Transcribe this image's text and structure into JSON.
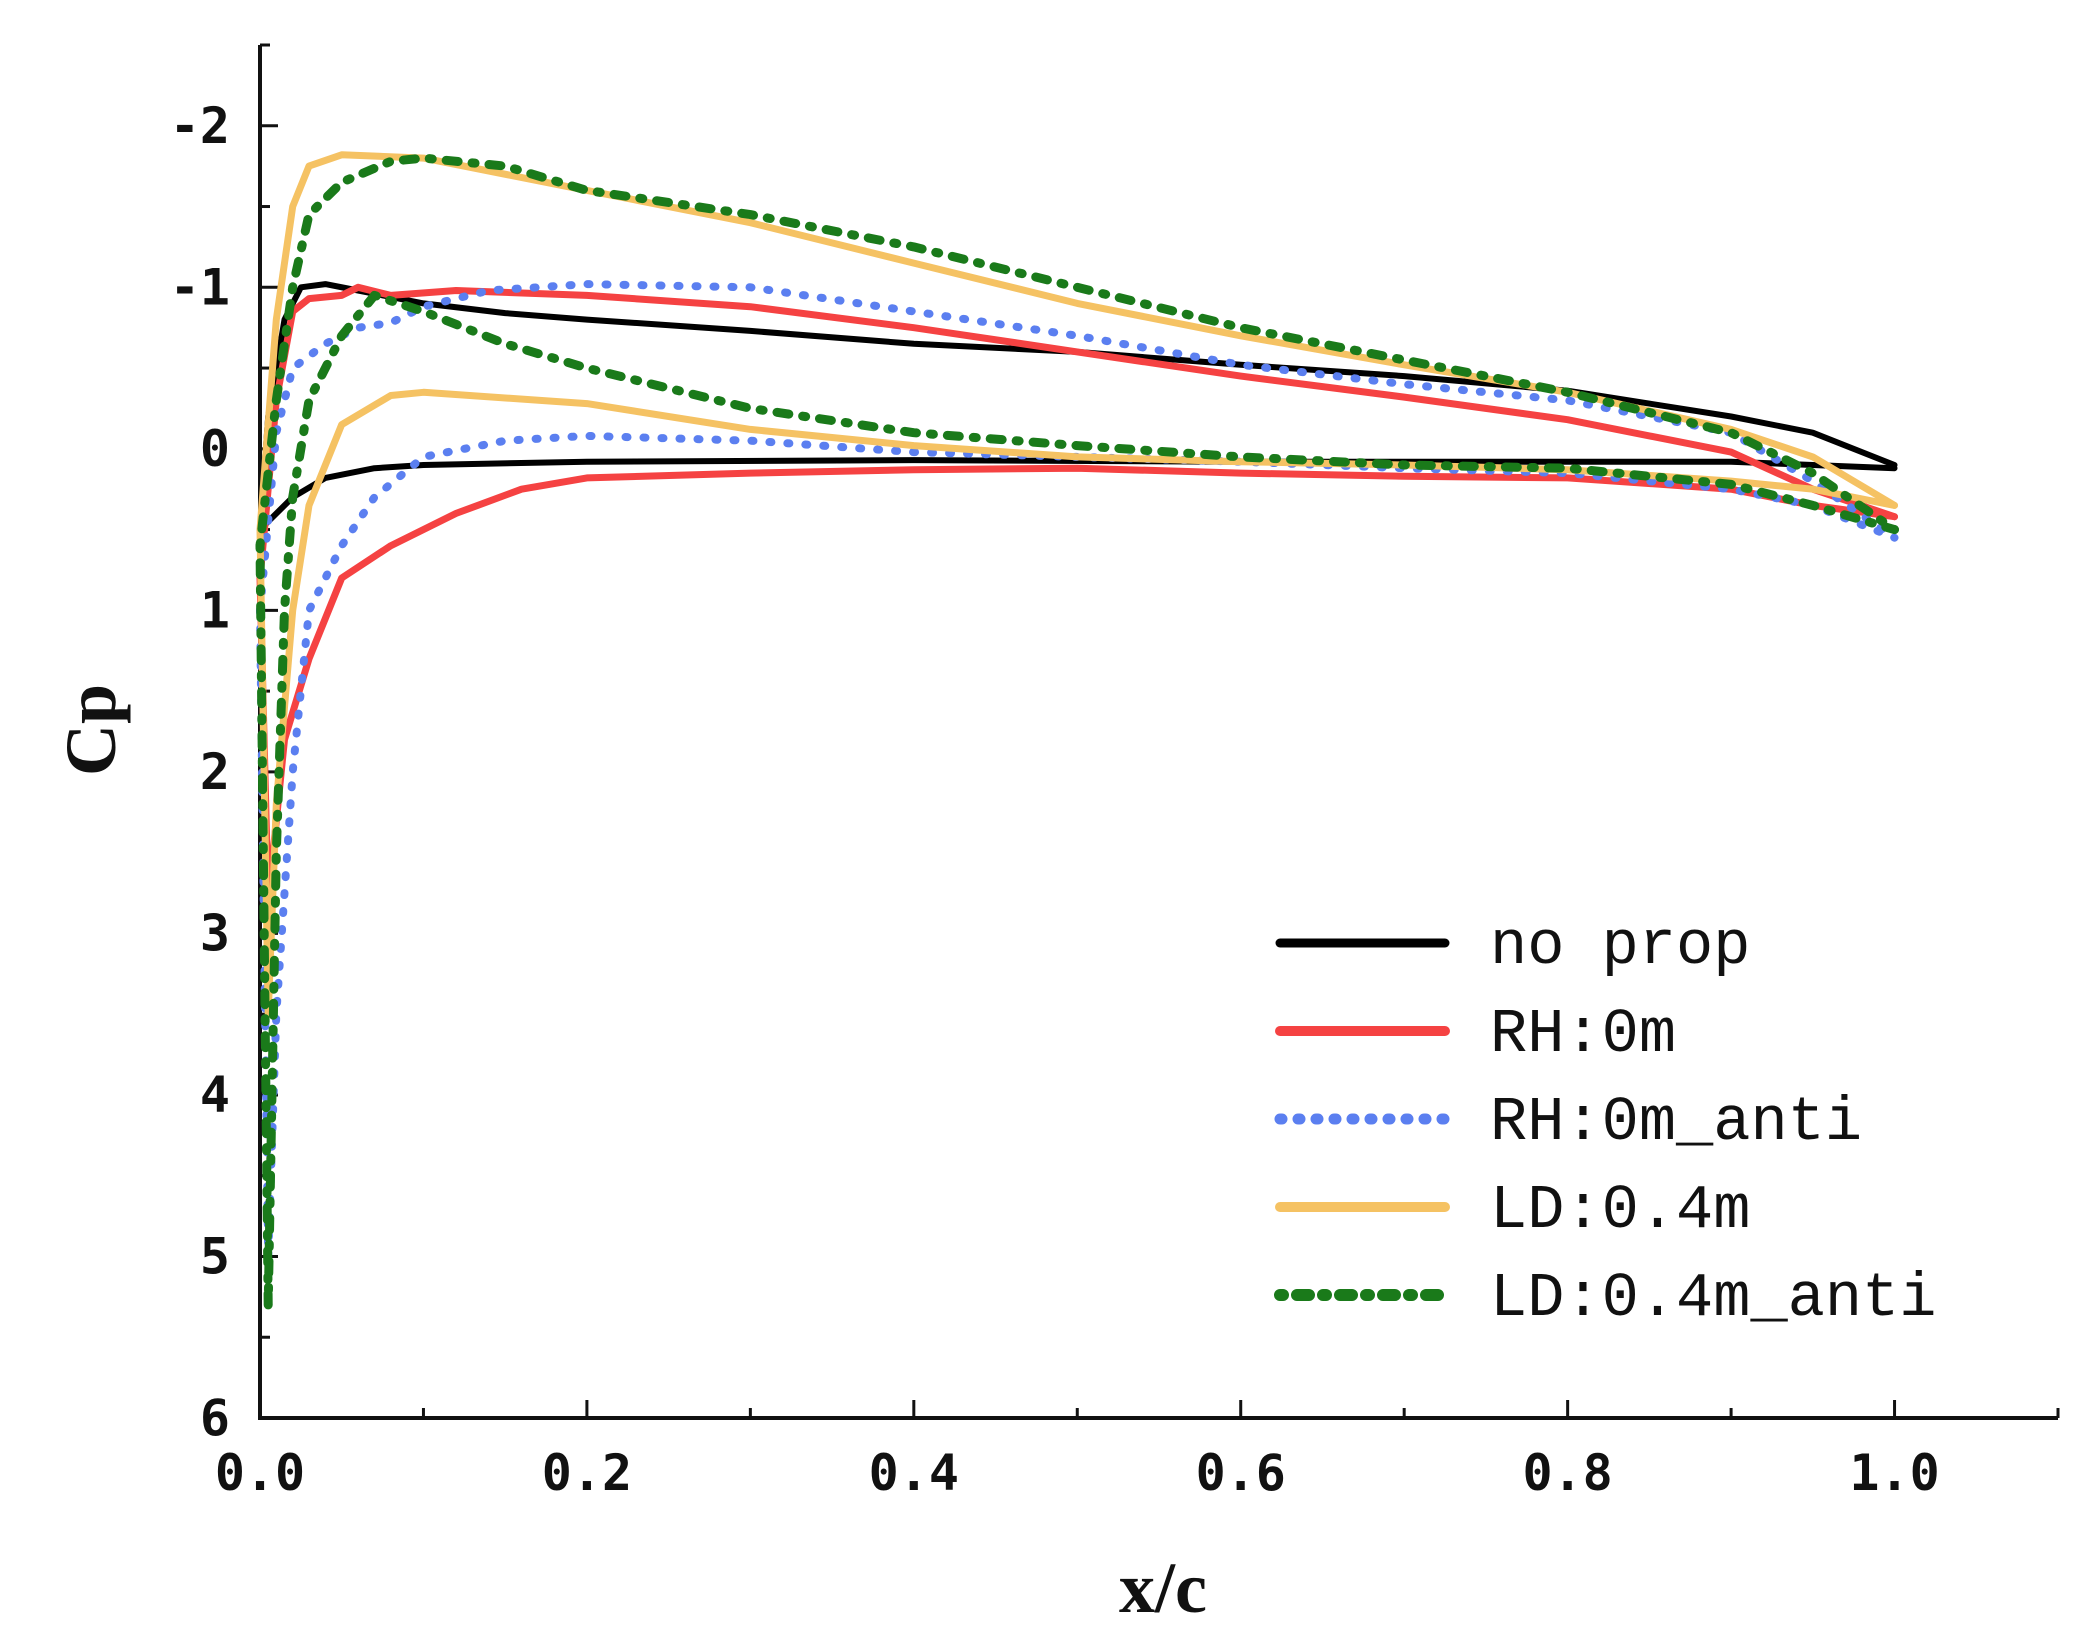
{
  "chart_data": {
    "type": "line",
    "title": "",
    "xlabel": "x/c",
    "ylabel": "Cp",
    "xlim": [
      0.0,
      1.1
    ],
    "ylim": [
      6,
      -2.5
    ],
    "y_inverted": true,
    "x_ticks": [
      0.0,
      0.2,
      0.4,
      0.6,
      0.8,
      1.0
    ],
    "x_tick_labels": [
      "0.0",
      "0.2",
      "0.4",
      "0.6",
      "0.8",
      "1.0"
    ],
    "y_ticks": [
      -2,
      -1,
      0,
      1,
      2,
      3,
      4,
      5,
      6
    ],
    "y_tick_labels": [
      "-2",
      "-1",
      "0",
      "1",
      "2",
      "3",
      "4",
      "5",
      "6"
    ],
    "legend_position": "bottom-right",
    "series": [
      {
        "name": "no prop",
        "color": "#000000",
        "style": "solid",
        "upper": [
          [
            0.0,
            0.5
          ],
          [
            0.005,
            -0.2
          ],
          [
            0.015,
            -0.8
          ],
          [
            0.025,
            -1.0
          ],
          [
            0.04,
            -1.02
          ],
          [
            0.06,
            -0.98
          ],
          [
            0.1,
            -0.9
          ],
          [
            0.15,
            -0.84
          ],
          [
            0.2,
            -0.8
          ],
          [
            0.3,
            -0.73
          ],
          [
            0.4,
            -0.65
          ],
          [
            0.5,
            -0.6
          ],
          [
            0.6,
            -0.52
          ],
          [
            0.7,
            -0.45
          ],
          [
            0.8,
            -0.36
          ],
          [
            0.9,
            -0.2
          ],
          [
            0.95,
            -0.1
          ],
          [
            1.0,
            0.1
          ]
        ],
        "lower": [
          [
            0.0,
            0.5
          ],
          [
            0.02,
            0.3
          ],
          [
            0.04,
            0.18
          ],
          [
            0.07,
            0.12
          ],
          [
            0.1,
            0.1
          ],
          [
            0.2,
            0.08
          ],
          [
            0.4,
            0.07
          ],
          [
            0.6,
            0.08
          ],
          [
            0.8,
            0.08
          ],
          [
            0.9,
            0.08
          ],
          [
            0.95,
            0.1
          ],
          [
            1.0,
            0.12
          ]
        ]
      },
      {
        "name": "RH:0m",
        "color": "#f54242",
        "style": "solid",
        "upper": [
          [
            0.0,
            0.8
          ],
          [
            0.01,
            -0.3
          ],
          [
            0.02,
            -0.85
          ],
          [
            0.03,
            -0.93
          ],
          [
            0.05,
            -0.95
          ],
          [
            0.06,
            -1.0
          ],
          [
            0.08,
            -0.95
          ],
          [
            0.12,
            -0.98
          ],
          [
            0.2,
            -0.95
          ],
          [
            0.3,
            -0.88
          ],
          [
            0.4,
            -0.75
          ],
          [
            0.5,
            -0.6
          ],
          [
            0.6,
            -0.45
          ],
          [
            0.7,
            -0.32
          ],
          [
            0.8,
            -0.18
          ],
          [
            0.9,
            0.02
          ],
          [
            0.95,
            0.25
          ],
          [
            1.0,
            0.42
          ]
        ],
        "lower": [
          [
            0.0,
            0.8
          ],
          [
            0.005,
            2.8
          ],
          [
            0.015,
            1.8
          ],
          [
            0.03,
            1.3
          ],
          [
            0.05,
            0.8
          ],
          [
            0.08,
            0.6
          ],
          [
            0.12,
            0.4
          ],
          [
            0.16,
            0.25
          ],
          [
            0.2,
            0.18
          ],
          [
            0.3,
            0.15
          ],
          [
            0.4,
            0.13
          ],
          [
            0.5,
            0.12
          ],
          [
            0.6,
            0.15
          ],
          [
            0.7,
            0.17
          ],
          [
            0.8,
            0.18
          ],
          [
            0.9,
            0.25
          ],
          [
            0.95,
            0.35
          ],
          [
            1.0,
            0.42
          ]
        ]
      },
      {
        "name": "RH:0m_anti",
        "color": "#5b7ff0",
        "style": "dotted",
        "upper": [
          [
            0.0,
            1.0
          ],
          [
            0.01,
            -0.1
          ],
          [
            0.02,
            -0.5
          ],
          [
            0.04,
            -0.65
          ],
          [
            0.06,
            -0.75
          ],
          [
            0.08,
            -0.78
          ],
          [
            0.1,
            -0.88
          ],
          [
            0.14,
            -0.98
          ],
          [
            0.2,
            -1.02
          ],
          [
            0.3,
            -1.0
          ],
          [
            0.4,
            -0.85
          ],
          [
            0.5,
            -0.7
          ],
          [
            0.6,
            -0.52
          ],
          [
            0.7,
            -0.4
          ],
          [
            0.8,
            -0.3
          ],
          [
            0.9,
            -0.1
          ],
          [
            0.95,
            0.2
          ],
          [
            1.0,
            0.55
          ]
        ],
        "lower": [
          [
            0.0,
            1.0
          ],
          [
            0.005,
            5.0
          ],
          [
            0.01,
            3.5
          ],
          [
            0.02,
            2.0
          ],
          [
            0.03,
            1.0
          ],
          [
            0.05,
            0.6
          ],
          [
            0.07,
            0.3
          ],
          [
            0.1,
            0.05
          ],
          [
            0.15,
            -0.05
          ],
          [
            0.2,
            -0.08
          ],
          [
            0.3,
            -0.05
          ],
          [
            0.4,
            0.02
          ],
          [
            0.5,
            0.05
          ],
          [
            0.6,
            0.08
          ],
          [
            0.7,
            0.12
          ],
          [
            0.8,
            0.15
          ],
          [
            0.9,
            0.25
          ],
          [
            0.95,
            0.35
          ],
          [
            1.0,
            0.55
          ]
        ]
      },
      {
        "name": "LD:0.4m",
        "color": "#f5c263",
        "style": "solid",
        "upper": [
          [
            0.0,
            0.5
          ],
          [
            0.01,
            -0.8
          ],
          [
            0.02,
            -1.5
          ],
          [
            0.03,
            -1.75
          ],
          [
            0.05,
            -1.82
          ],
          [
            0.1,
            -1.8
          ],
          [
            0.2,
            -1.6
          ],
          [
            0.3,
            -1.4
          ],
          [
            0.4,
            -1.15
          ],
          [
            0.5,
            -0.9
          ],
          [
            0.6,
            -0.7
          ],
          [
            0.7,
            -0.52
          ],
          [
            0.8,
            -0.35
          ],
          [
            0.9,
            -0.12
          ],
          [
            0.95,
            0.05
          ],
          [
            1.0,
            0.35
          ]
        ],
        "lower": [
          [
            0.0,
            0.5
          ],
          [
            0.005,
            3.5
          ],
          [
            0.01,
            2.2
          ],
          [
            0.02,
            1.0
          ],
          [
            0.03,
            0.35
          ],
          [
            0.05,
            -0.15
          ],
          [
            0.08,
            -0.33
          ],
          [
            0.1,
            -0.35
          ],
          [
            0.2,
            -0.28
          ],
          [
            0.3,
            -0.12
          ],
          [
            0.4,
            -0.02
          ],
          [
            0.5,
            0.05
          ],
          [
            0.6,
            0.08
          ],
          [
            0.7,
            0.1
          ],
          [
            0.8,
            0.13
          ],
          [
            0.9,
            0.2
          ],
          [
            0.95,
            0.25
          ],
          [
            1.0,
            0.35
          ]
        ]
      },
      {
        "name": "LD:0.4m_anti",
        "color": "#1a7a1a",
        "style": "dashdot",
        "upper": [
          [
            0.0,
            0.6
          ],
          [
            0.01,
            -0.3
          ],
          [
            0.02,
            -1.0
          ],
          [
            0.03,
            -1.45
          ],
          [
            0.05,
            -1.65
          ],
          [
            0.08,
            -1.78
          ],
          [
            0.1,
            -1.8
          ],
          [
            0.15,
            -1.75
          ],
          [
            0.2,
            -1.6
          ],
          [
            0.3,
            -1.45
          ],
          [
            0.4,
            -1.25
          ],
          [
            0.5,
            -1.0
          ],
          [
            0.6,
            -0.75
          ],
          [
            0.7,
            -0.55
          ],
          [
            0.8,
            -0.35
          ],
          [
            0.9,
            -0.1
          ],
          [
            0.95,
            0.15
          ],
          [
            1.0,
            0.5
          ]
        ],
        "lower": [
          [
            0.0,
            0.6
          ],
          [
            0.005,
            5.3
          ],
          [
            0.01,
            2.5
          ],
          [
            0.015,
            1.0
          ],
          [
            0.02,
            0.3
          ],
          [
            0.03,
            -0.3
          ],
          [
            0.05,
            -0.7
          ],
          [
            0.07,
            -0.95
          ],
          [
            0.1,
            -0.85
          ],
          [
            0.15,
            -0.65
          ],
          [
            0.2,
            -0.5
          ],
          [
            0.3,
            -0.25
          ],
          [
            0.4,
            -0.1
          ],
          [
            0.5,
            -0.02
          ],
          [
            0.6,
            0.05
          ],
          [
            0.7,
            0.1
          ],
          [
            0.8,
            0.12
          ],
          [
            0.9,
            0.22
          ],
          [
            0.95,
            0.35
          ],
          [
            1.0,
            0.5
          ]
        ]
      }
    ]
  }
}
